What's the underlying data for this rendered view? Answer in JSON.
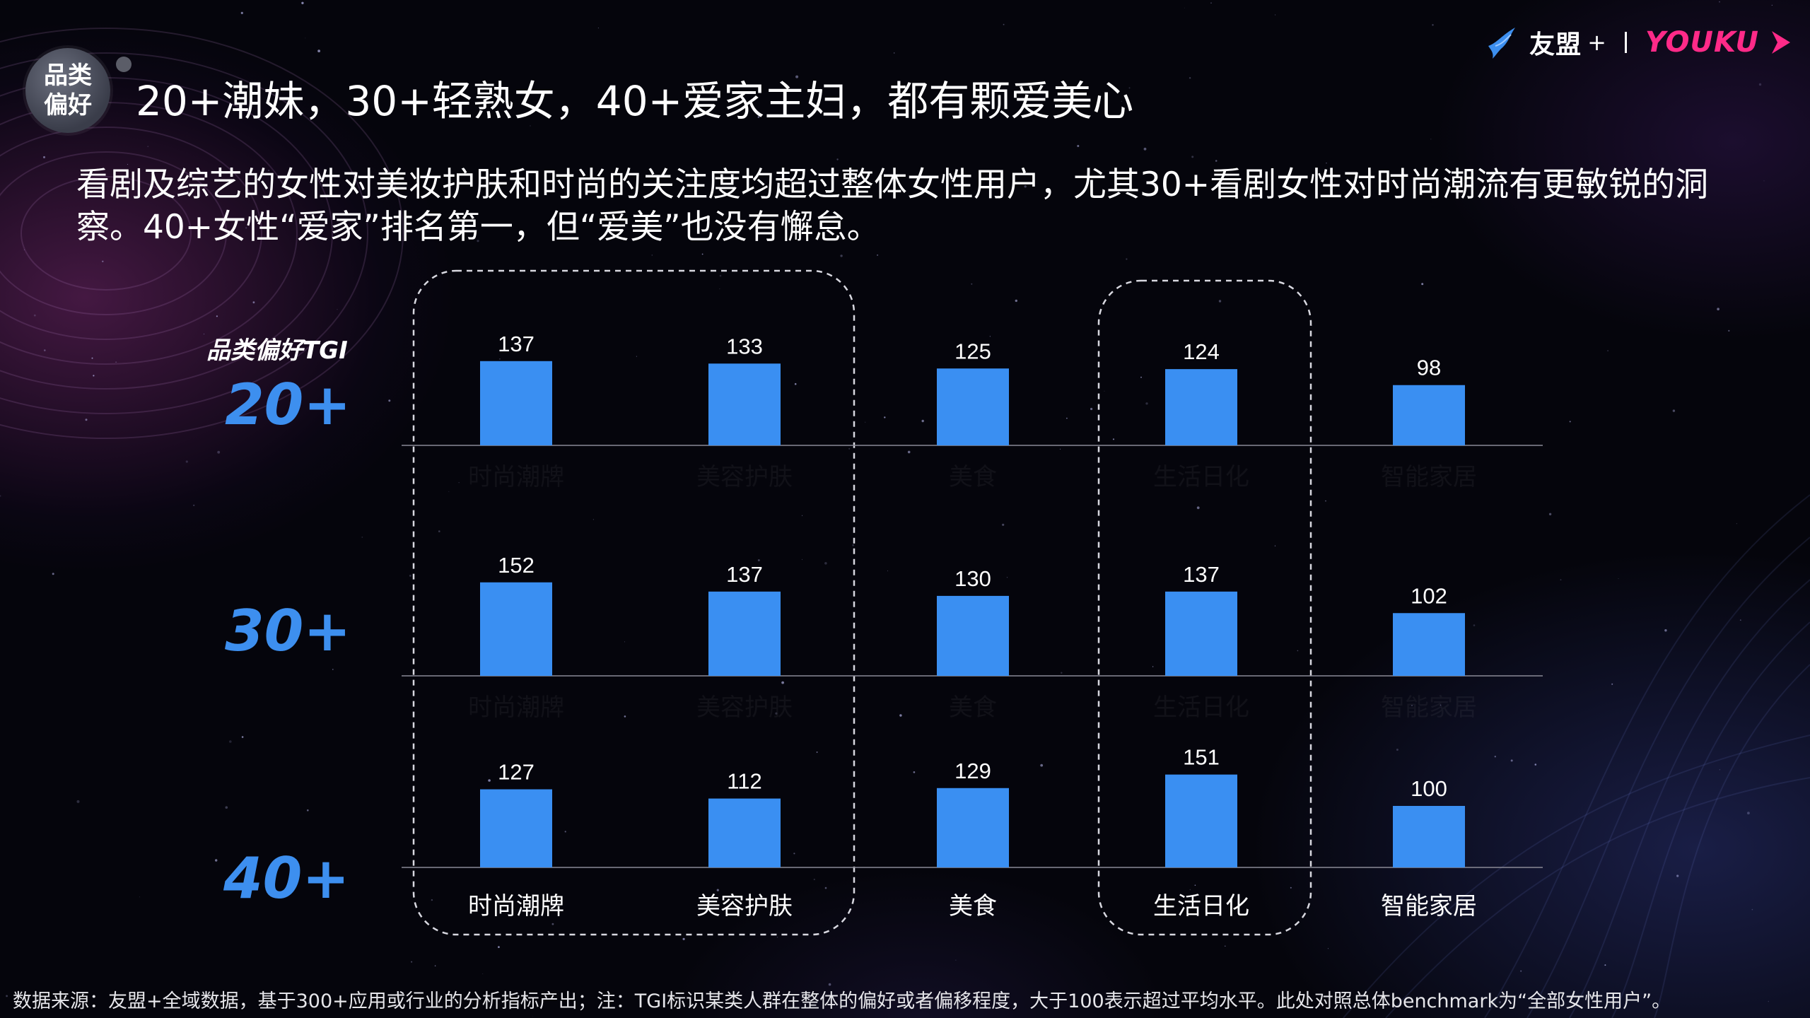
{
  "header": {
    "badge_line1": "品类",
    "badge_line2": "偏好",
    "title": "20+潮妹，30+轻熟女，40+爱家主妇，都有颗爱美心",
    "subtitle": "看剧及综艺的女性对美妆护肤和时尚的关注度均超过整体女性用户，尤其30+看剧女性对时尚潮流有更敏锐的洞察。40+女性“爱家”排名第一，但“爱美”也没有懈怠。"
  },
  "logo": {
    "youmeng": "友盟",
    "plus": "+",
    "youku": "YOUKU",
    "bird_icon": "bird-icon",
    "play_icon": "play-icon",
    "brand_color": "#ff2a88"
  },
  "chart_data": {
    "type": "bar",
    "title": "品类偏好TGI",
    "categories": [
      "时尚潮牌",
      "美容护肤",
      "美食",
      "生活日化",
      "智能家居"
    ],
    "series": [
      {
        "name": "20+",
        "values": [
          137,
          133,
          125,
          124,
          98
        ]
      },
      {
        "name": "30+",
        "values": [
          152,
          137,
          130,
          137,
          102
        ]
      },
      {
        "name": "40+",
        "values": [
          127,
          112,
          129,
          151,
          100
        ]
      }
    ],
    "bar_color": "#3a8ff2",
    "highlighted_categories": [
      "时尚潮牌",
      "美容护肤",
      "生活日化"
    ],
    "xlabel": "",
    "ylabel": ""
  },
  "footnote": "数据来源：友盟+全域数据，基于300+应用或行业的分析指标产出；注：TGI标识某类人群在整体的偏好或者偏移程度，大于100表示超过平均水平。此处对照总体benchmark为“全部女性用户”。"
}
